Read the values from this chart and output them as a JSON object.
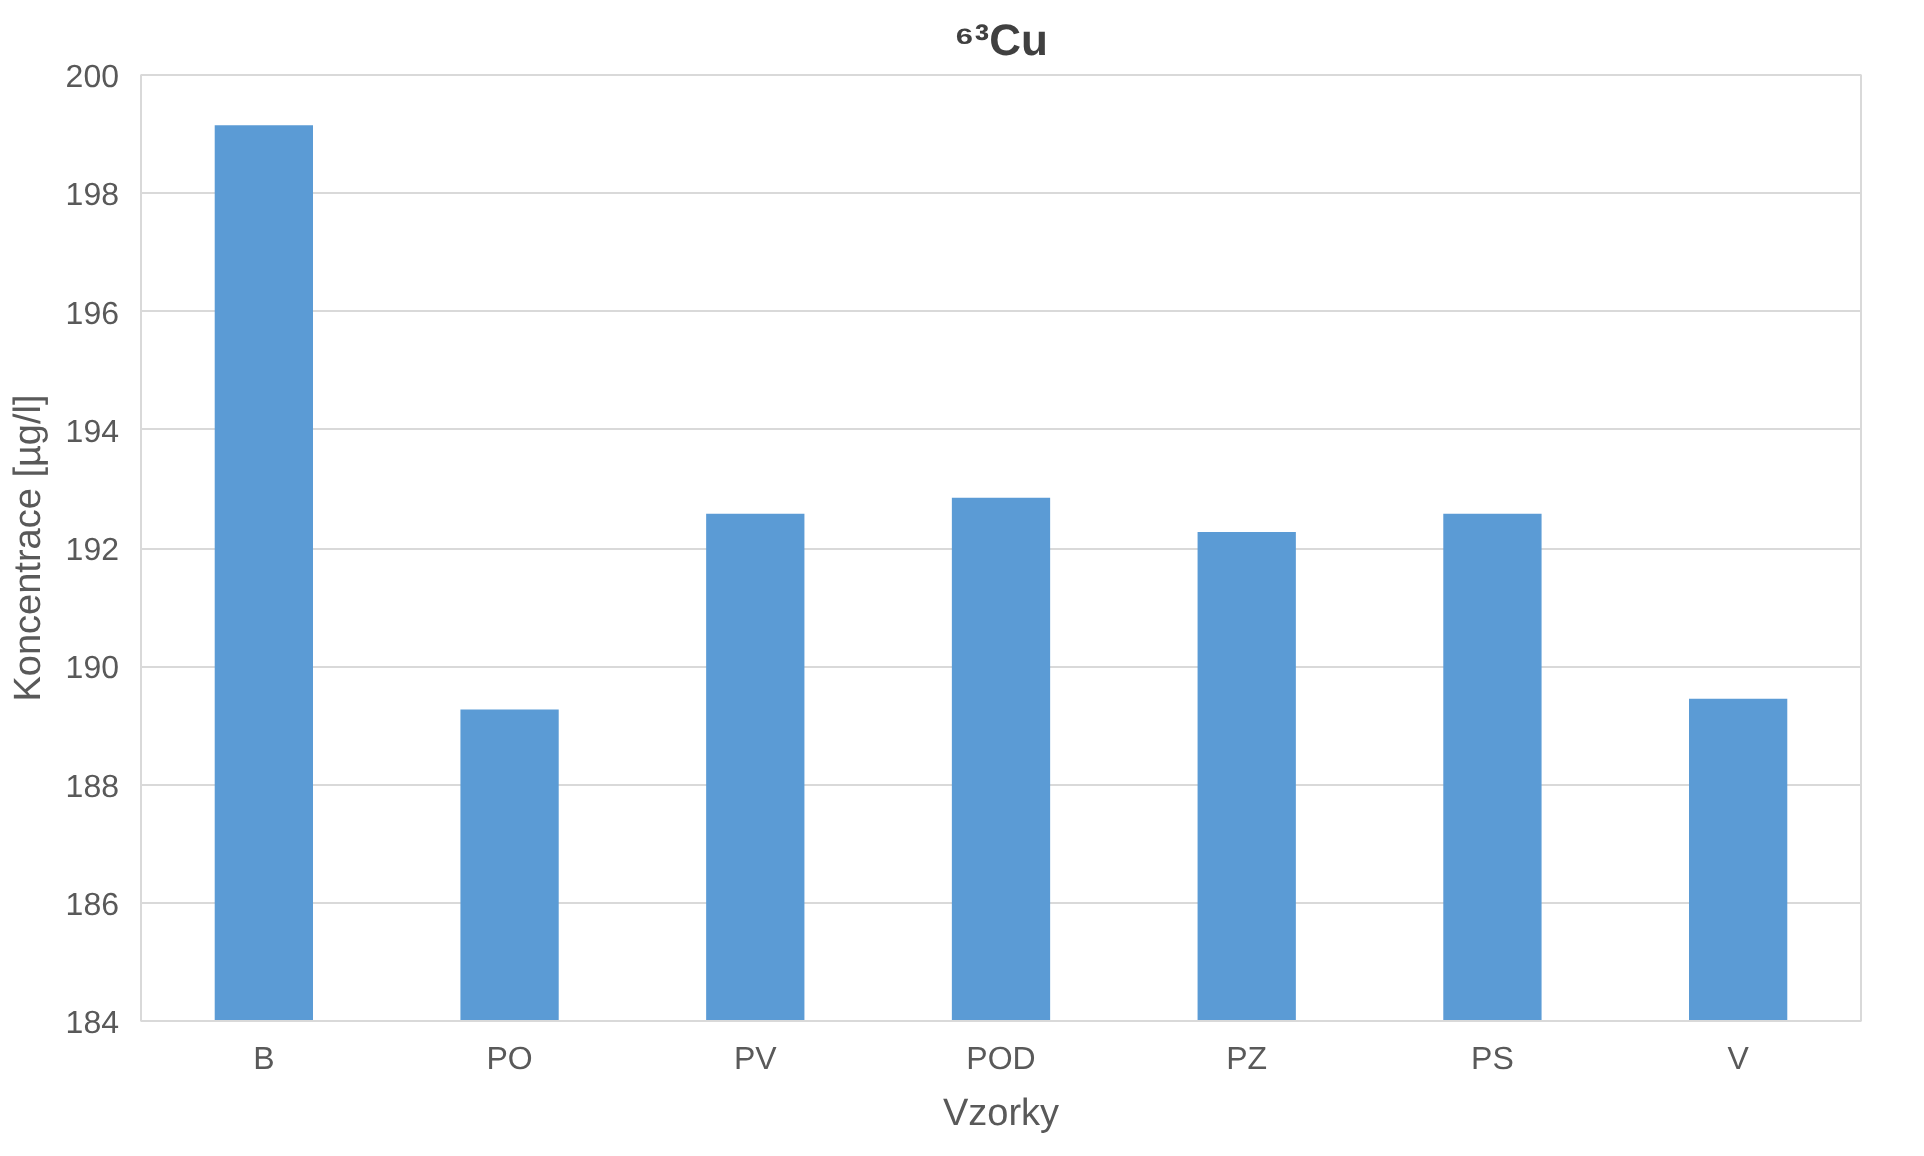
{
  "chart_data": {
    "type": "bar",
    "title": "⁶³Cu",
    "xlabel": "Vzorky",
    "ylabel": "Koncentrace [µg/l]",
    "categories": [
      "B",
      "PO",
      "PV",
      "POD",
      "PZ",
      "PS",
      "V"
    ],
    "series": [
      {
        "color": "#5b9bd5",
        "values": [
          199.15,
          189.27,
          192.58,
          192.85,
          192.27,
          192.58,
          189.45
        ]
      }
    ],
    "ylim": [
      184,
      200
    ],
    "yticks": [
      184,
      186,
      188,
      190,
      192,
      194,
      196,
      198,
      200
    ],
    "grid": "y"
  }
}
